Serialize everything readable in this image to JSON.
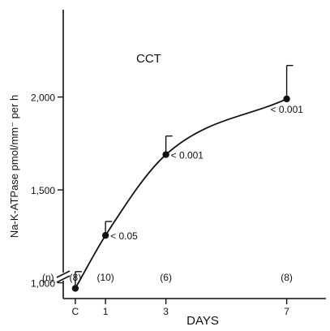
{
  "chart_data": {
    "type": "line",
    "title": "CCT",
    "xlabel": "DAYS",
    "ylabel": "Na-K-ATPase pmol/mm⁻ per h",
    "x_tick_labels": [
      "C",
      "1",
      "3",
      "7"
    ],
    "x_tick_values": [
      0,
      1,
      3,
      7
    ],
    "xlim": [
      -0.4,
      8.3
    ],
    "y_tick_labels": [
      "1,000",
      "1,500",
      "2,000"
    ],
    "y_tick_values": [
      1000,
      1500,
      2000
    ],
    "ylim": [
      915,
      2470
    ],
    "axis_break": true,
    "n_label": "(n)",
    "points": [
      {
        "x": 0,
        "y": 970,
        "err_upper": 1060,
        "n_label": "(8)",
        "annotation": ""
      },
      {
        "x": 1,
        "y": 1255,
        "err_upper": 1330,
        "n_label": "(10)",
        "annotation": "< 0.05"
      },
      {
        "x": 3,
        "y": 1690,
        "err_upper": 1790,
        "n_label": "(6)",
        "annotation": "< 0.001"
      },
      {
        "x": 7,
        "y": 1990,
        "err_upper": 2170,
        "n_label": "(8)",
        "annotation": "< 0.001"
      }
    ]
  }
}
